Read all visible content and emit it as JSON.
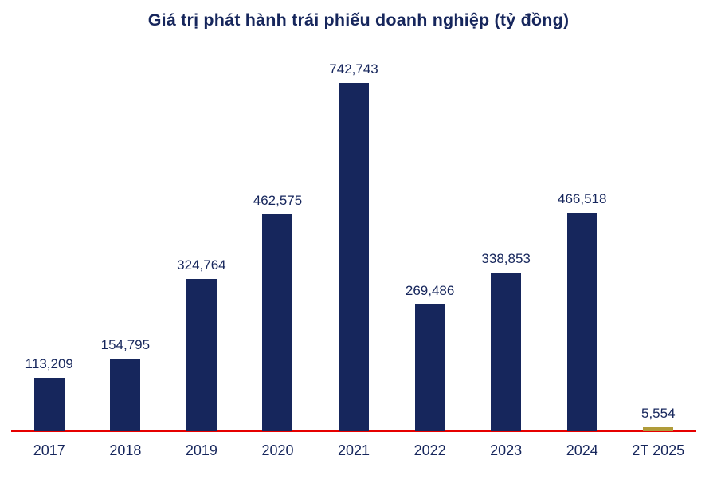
{
  "chart": {
    "title": "Giá trị phát hành trái phiếu doanh nghiệp (tỷ đồng)"
  },
  "chart_data": {
    "type": "bar",
    "title": "Giá trị phát hành trái phiếu doanh nghiệp (tỷ đồng)",
    "categories": [
      "2017",
      "2018",
      "2019",
      "2020",
      "2021",
      "2022",
      "2023",
      "2024",
      "2T 2025"
    ],
    "values": [
      113209,
      154795,
      324764,
      462575,
      742743,
      269486,
      338853,
      466518,
      5554
    ],
    "value_labels": [
      "113,209",
      "154,795",
      "324,764",
      "462,575",
      "742,743",
      "269,486",
      "338,853",
      "466,518",
      "5,554"
    ],
    "xlabel": "",
    "ylabel": "",
    "ylim": [
      0,
      742743
    ],
    "grid": false,
    "legend": "none",
    "bar_colors": [
      "#16265C",
      "#16265C",
      "#16265C",
      "#16265C",
      "#16265C",
      "#16265C",
      "#16265C",
      "#16265C",
      "#B09C3A"
    ],
    "colors": {
      "bar_primary": "#16265C",
      "bar_highlight": "#B09C3A",
      "axis_line": "#E60000",
      "text": "#16265C",
      "background": "#FFFFFF"
    }
  }
}
